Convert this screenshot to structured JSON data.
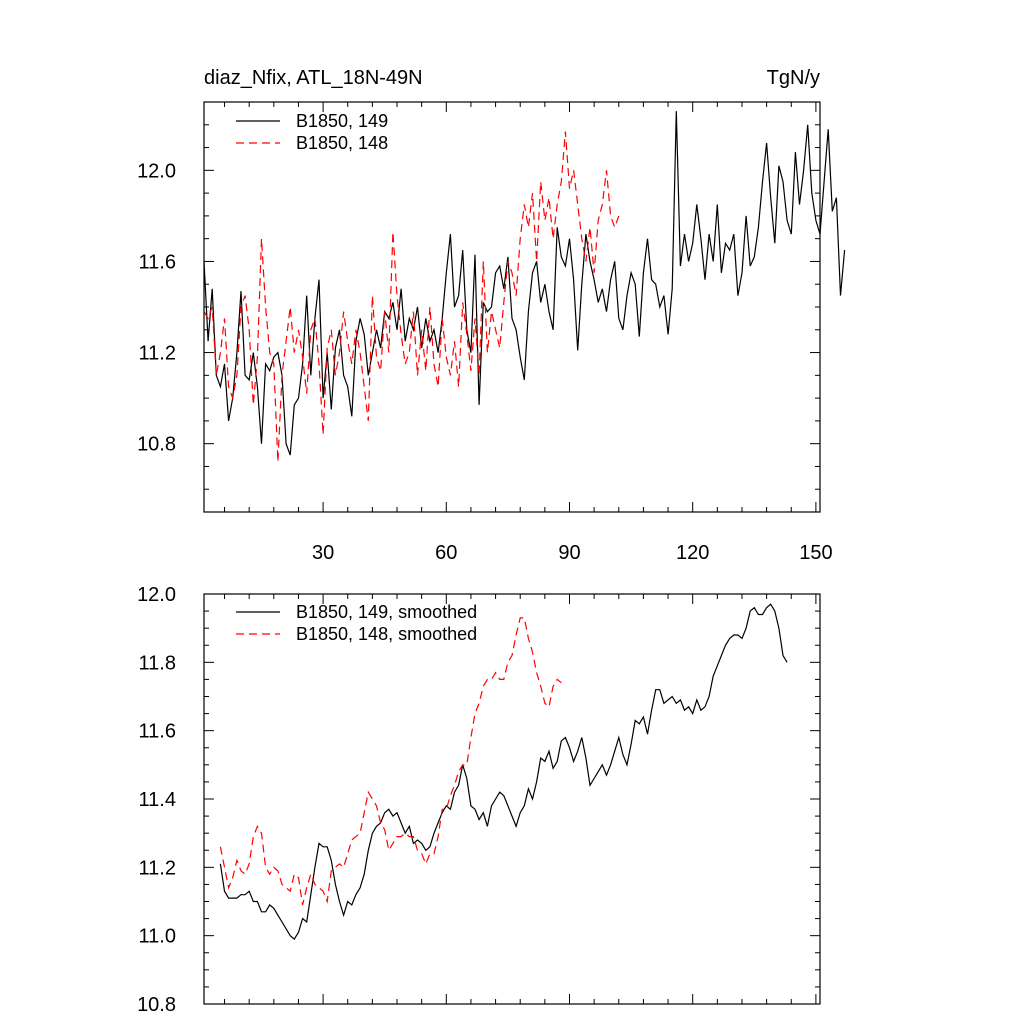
{
  "chart_data": [
    {
      "type": "line",
      "title_left": "diaz_Nfix, ATL_18N-49N",
      "title_right": "TgN/y",
      "xlim": [
        1,
        151
      ],
      "ylim": [
        10.5,
        12.3
      ],
      "xticks": [
        30,
        60,
        90,
        120,
        150
      ],
      "xtick_labels": [
        "30",
        "60",
        "90",
        "120",
        "150"
      ],
      "yticks": [
        10.8,
        11.2,
        11.6,
        12.0
      ],
      "ytick_labels": [
        "10.8",
        "11.2",
        "11.6",
        "12.0"
      ],
      "legend_position": "top-left",
      "series": [
        {
          "name": "B1850, 149",
          "color": "#000000",
          "dash": "solid",
          "x_start": 1,
          "values": [
            11.6,
            11.25,
            11.48,
            11.1,
            11.05,
            11.15,
            10.9,
            11.0,
            11.2,
            11.47,
            11.1,
            11.08,
            11.2,
            11.05,
            10.8,
            11.15,
            11.12,
            11.18,
            11.2,
            11.1,
            10.8,
            10.75,
            10.97,
            11.0,
            11.15,
            11.45,
            11.1,
            11.35,
            11.52,
            11.0,
            11.2,
            10.95,
            11.22,
            11.3,
            11.1,
            11.05,
            10.92,
            11.25,
            11.35,
            11.28,
            11.1,
            11.2,
            11.3,
            11.22,
            11.38,
            11.35,
            11.42,
            11.3,
            11.48,
            11.25,
            11.35,
            11.3,
            11.4,
            11.22,
            11.35,
            11.25,
            11.3,
            11.2,
            11.35,
            11.55,
            11.72,
            11.4,
            11.45,
            11.65,
            11.3,
            11.2,
            11.63,
            10.97,
            11.42,
            11.38,
            11.4,
            11.55,
            11.58,
            11.48,
            11.62,
            11.35,
            11.3,
            11.18,
            11.08,
            11.38,
            11.55,
            11.6,
            11.42,
            11.5,
            11.38,
            11.3,
            11.75,
            11.62,
            11.58,
            11.7,
            11.52,
            11.21,
            11.5,
            11.72,
            11.6,
            11.52,
            11.42,
            11.48,
            11.38,
            11.52,
            11.6,
            11.35,
            11.3,
            11.45,
            11.55,
            11.5,
            11.27,
            11.55,
            11.7,
            11.52,
            11.5,
            11.4,
            11.45,
            11.28,
            11.48,
            12.26,
            11.58,
            11.72,
            11.6,
            11.68,
            11.85,
            11.7,
            11.52,
            11.72,
            11.6,
            11.85,
            11.55,
            11.68,
            11.65,
            11.72,
            11.45,
            11.55,
            11.8,
            11.58,
            11.62,
            11.75,
            11.95,
            12.12,
            11.88,
            11.68,
            12.02,
            11.95,
            11.78,
            11.72,
            12.08,
            11.85,
            12.0,
            12.2,
            11.9,
            11.78,
            11.72,
            11.95,
            12.18,
            11.82,
            11.88,
            11.45,
            11.65
          ]
        },
        {
          "name": "B1850, 148",
          "color": "#ff0000",
          "dash": "dashed",
          "x_start": 1,
          "values": [
            11.38,
            11.35,
            11.4,
            11.1,
            11.2,
            11.35,
            11.05,
            11.0,
            11.1,
            11.4,
            11.45,
            11.3,
            10.97,
            11.18,
            11.7,
            11.4,
            11.2,
            11.15,
            10.72,
            11.1,
            11.25,
            11.4,
            11.2,
            11.3,
            11.18,
            11.02,
            11.3,
            11.35,
            11.15,
            10.84,
            11.22,
            11.3,
            11.1,
            11.2,
            11.38,
            11.25,
            11.15,
            11.3,
            11.2,
            11.05,
            10.9,
            11.45,
            11.18,
            11.12,
            11.38,
            11.2,
            11.73,
            11.45,
            11.28,
            11.15,
            11.2,
            11.38,
            11.1,
            11.3,
            11.12,
            11.4,
            11.15,
            11.05,
            11.35,
            11.18,
            11.1,
            11.25,
            11.05,
            11.42,
            11.28,
            11.12,
            11.35,
            11.1,
            11.6,
            11.2,
            11.38,
            11.3,
            11.22,
            11.42,
            11.6,
            11.55,
            11.45,
            11.7,
            11.85,
            11.75,
            11.9,
            11.6,
            11.95,
            11.78,
            11.88,
            11.7,
            11.85,
            11.95,
            12.17,
            11.92,
            12.0,
            11.85,
            11.7,
            11.6,
            11.75,
            11.55,
            11.78,
            11.85,
            12.0,
            11.8,
            11.75,
            11.8
          ]
        }
      ]
    },
    {
      "type": "line",
      "xlim": [
        1,
        151
      ],
      "ylim": [
        10.8,
        12.0
      ],
      "xticks": [
        30,
        60,
        90,
        120,
        150
      ],
      "yticks": [
        10.8,
        11.0,
        11.2,
        11.4,
        11.6,
        11.8,
        12.0
      ],
      "ytick_labels": [
        "10.8",
        "11.0",
        "11.2",
        "11.4",
        "11.6",
        "11.8",
        "12.0"
      ],
      "legend_position": "top-left",
      "series": [
        {
          "name": "B1850, 149, smoothed",
          "color": "#000000",
          "dash": "solid",
          "x_start": 5,
          "values": [
            11.21,
            11.13,
            11.11,
            11.11,
            11.11,
            11.12,
            11.12,
            11.13,
            11.1,
            11.1,
            11.07,
            11.07,
            11.09,
            11.08,
            11.06,
            11.04,
            11.02,
            11.0,
            10.99,
            11.01,
            11.05,
            11.04,
            11.12,
            11.2,
            11.27,
            11.26,
            11.26,
            11.22,
            11.15,
            11.1,
            11.06,
            11.1,
            11.09,
            11.12,
            11.14,
            11.18,
            11.25,
            11.3,
            11.32,
            11.33,
            11.36,
            11.37,
            11.35,
            11.36,
            11.33,
            11.3,
            11.32,
            11.27,
            11.28,
            11.27,
            11.25,
            11.26,
            11.3,
            11.33,
            11.36,
            11.38,
            11.37,
            11.42,
            11.44,
            11.5,
            11.46,
            11.38,
            11.37,
            11.34,
            11.36,
            11.32,
            11.38,
            11.4,
            11.42,
            11.41,
            11.38,
            11.35,
            11.32,
            11.36,
            11.38,
            11.43,
            11.4,
            11.45,
            11.52,
            11.51,
            11.54,
            11.49,
            11.51,
            11.57,
            11.58,
            11.55,
            11.51,
            11.54,
            11.58,
            11.52,
            11.44,
            11.46,
            11.48,
            11.5,
            11.47,
            11.5,
            11.54,
            11.58,
            11.53,
            11.5,
            11.56,
            11.63,
            11.62,
            11.64,
            11.59,
            11.66,
            11.72,
            11.72,
            11.68,
            11.69,
            11.7,
            11.68,
            11.69,
            11.66,
            11.67,
            11.65,
            11.69,
            11.66,
            11.67,
            11.7,
            11.76,
            11.79,
            11.82,
            11.85,
            11.87,
            11.88,
            11.88,
            11.87,
            11.9,
            11.95,
            11.96,
            11.94,
            11.94,
            11.96,
            11.97,
            11.95,
            11.9,
            11.82,
            11.8
          ]
        },
        {
          "name": "B1850, 148, smoothed",
          "color": "#ff0000",
          "dash": "dashed",
          "x_start": 5,
          "values": [
            11.26,
            11.2,
            11.14,
            11.17,
            11.22,
            11.19,
            11.18,
            11.21,
            11.29,
            11.32,
            11.3,
            11.2,
            11.18,
            11.2,
            11.19,
            11.15,
            11.14,
            11.13,
            11.18,
            11.17,
            11.09,
            11.14,
            11.18,
            11.15,
            11.14,
            11.13,
            11.1,
            11.19,
            11.2,
            11.21,
            11.2,
            11.24,
            11.28,
            11.29,
            11.3,
            11.36,
            11.42,
            11.4,
            11.38,
            11.33,
            11.31,
            11.25,
            11.27,
            11.29,
            11.29,
            11.3,
            11.29,
            11.29,
            11.25,
            11.24,
            11.21,
            11.24,
            11.24,
            11.29,
            11.37,
            11.37,
            11.41,
            11.44,
            11.48,
            11.5,
            11.5,
            11.58,
            11.65,
            11.68,
            11.73,
            11.75,
            11.75,
            11.77,
            11.75,
            11.75,
            11.8,
            11.82,
            11.88,
            11.93,
            11.93,
            11.87,
            11.83,
            11.77,
            11.73,
            11.68,
            11.67,
            11.73,
            11.75,
            11.74
          ]
        }
      ]
    }
  ]
}
